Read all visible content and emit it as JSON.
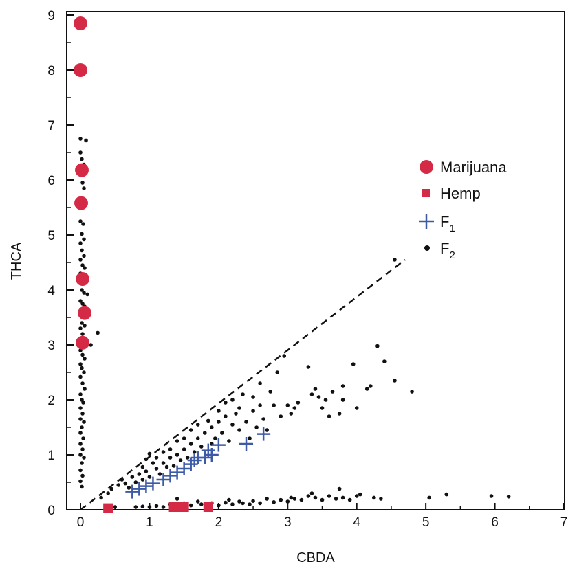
{
  "chart_data": {
    "type": "scatter",
    "xlabel": "CBDA",
    "ylabel": "THCA",
    "xlim": [
      0,
      7
    ],
    "ylim": [
      0,
      9
    ],
    "x_ticks": [
      "0",
      "1",
      "2",
      "3",
      "4",
      "5",
      "6",
      "7"
    ],
    "y_ticks": [
      "0",
      "1",
      "2",
      "3",
      "4",
      "5",
      "6",
      "7",
      "8",
      "9"
    ],
    "grid": false,
    "legend_position": "top-right",
    "legend": [
      {
        "label": "Marijuana",
        "sub": "",
        "marker": "circle"
      },
      {
        "label": "Hemp",
        "sub": "",
        "marker": "square"
      },
      {
        "label": "F",
        "sub": "1",
        "marker": "plus"
      },
      {
        "label": "F",
        "sub": "2",
        "marker": "dot"
      }
    ],
    "colors": {
      "marijuana": "#d42a45",
      "hemp": "#d42a45",
      "f1": "#3d5aa6",
      "f2": "#111111"
    },
    "reference_line": {
      "style": "dashed",
      "from": [
        0,
        0
      ],
      "to": [
        4.7,
        4.55
      ]
    },
    "series": [
      {
        "name": "Marijuana",
        "marker": "circle",
        "points": [
          [
            0.0,
            8.85
          ],
          [
            0.0,
            8.0
          ],
          [
            0.02,
            6.18
          ],
          [
            0.01,
            5.58
          ],
          [
            0.03,
            4.2
          ],
          [
            0.06,
            3.58
          ],
          [
            0.03,
            3.04
          ]
        ]
      },
      {
        "name": "Hemp",
        "marker": "square",
        "points": [
          [
            0.4,
            0.03
          ],
          [
            1.35,
            0.05
          ],
          [
            1.45,
            0.05
          ],
          [
            1.5,
            0.05
          ],
          [
            1.85,
            0.05
          ]
        ]
      },
      {
        "name": "F1",
        "marker": "plus",
        "points": [
          [
            0.75,
            0.33
          ],
          [
            0.85,
            0.38
          ],
          [
            0.95,
            0.43
          ],
          [
            1.05,
            0.48
          ],
          [
            1.2,
            0.55
          ],
          [
            1.3,
            0.62
          ],
          [
            1.4,
            0.68
          ],
          [
            1.5,
            0.75
          ],
          [
            1.6,
            0.83
          ],
          [
            1.65,
            0.9
          ],
          [
            1.7,
            0.95
          ],
          [
            1.8,
            0.95
          ],
          [
            1.9,
            1.0
          ],
          [
            1.85,
            1.08
          ],
          [
            2.0,
            1.18
          ],
          [
            2.4,
            1.2
          ],
          [
            2.65,
            1.38
          ]
        ]
      },
      {
        "name": "F2",
        "marker": "dot",
        "points": [
          [
            0.0,
            6.75
          ],
          [
            0.08,
            6.72
          ],
          [
            0.0,
            6.5
          ],
          [
            0.02,
            6.38
          ],
          [
            0.05,
            6.28
          ],
          [
            0.03,
            5.95
          ],
          [
            0.05,
            5.85
          ],
          [
            0.03,
            5.55
          ],
          [
            0.0,
            5.25
          ],
          [
            0.04,
            5.2
          ],
          [
            0.02,
            5.02
          ],
          [
            0.05,
            4.92
          ],
          [
            0.0,
            4.85
          ],
          [
            0.02,
            4.72
          ],
          [
            0.05,
            4.62
          ],
          [
            0.0,
            4.55
          ],
          [
            0.03,
            4.45
          ],
          [
            0.06,
            4.4
          ],
          [
            0.0,
            4.3
          ],
          [
            0.02,
            4.0
          ],
          [
            0.05,
            3.95
          ],
          [
            0.1,
            3.92
          ],
          [
            0.0,
            3.8
          ],
          [
            0.03,
            3.75
          ],
          [
            0.06,
            3.7
          ],
          [
            0.0,
            3.62
          ],
          [
            0.04,
            3.5
          ],
          [
            0.02,
            3.4
          ],
          [
            0.06,
            3.35
          ],
          [
            0.0,
            3.3
          ],
          [
            0.03,
            3.2
          ],
          [
            0.25,
            3.22
          ],
          [
            0.0,
            3.1
          ],
          [
            0.05,
            3.02
          ],
          [
            0.15,
            3.0
          ],
          [
            0.0,
            2.9
          ],
          [
            0.03,
            2.82
          ],
          [
            0.06,
            2.75
          ],
          [
            0.0,
            2.65
          ],
          [
            0.02,
            2.58
          ],
          [
            0.05,
            2.5
          ],
          [
            0.0,
            2.42
          ],
          [
            0.03,
            2.3
          ],
          [
            0.06,
            2.2
          ],
          [
            0.0,
            2.1
          ],
          [
            0.02,
            2.0
          ],
          [
            0.04,
            1.95
          ],
          [
            0.0,
            1.85
          ],
          [
            0.03,
            1.75
          ],
          [
            0.0,
            1.65
          ],
          [
            0.05,
            1.6
          ],
          [
            0.02,
            1.5
          ],
          [
            0.0,
            1.4
          ],
          [
            0.04,
            1.3
          ],
          [
            0.0,
            1.2
          ],
          [
            0.03,
            1.1
          ],
          [
            0.0,
            1.0
          ],
          [
            0.05,
            0.95
          ],
          [
            0.02,
            0.85
          ],
          [
            0.0,
            0.72
          ],
          [
            0.03,
            0.62
          ],
          [
            0.0,
            0.52
          ],
          [
            0.02,
            0.42
          ],
          [
            0.3,
            0.22
          ],
          [
            0.4,
            0.3
          ],
          [
            0.45,
            0.38
          ],
          [
            0.55,
            0.45
          ],
          [
            0.6,
            0.55
          ],
          [
            0.65,
            0.48
          ],
          [
            0.7,
            0.4
          ],
          [
            0.75,
            0.6
          ],
          [
            0.8,
            0.5
          ],
          [
            0.85,
            0.65
          ],
          [
            0.9,
            0.55
          ],
          [
            0.9,
            0.78
          ],
          [
            0.95,
            0.7
          ],
          [
            1.0,
            0.6
          ],
          [
            0.95,
            0.92
          ],
          [
            1.0,
            1.02
          ],
          [
            1.05,
            0.85
          ],
          [
            1.1,
            0.75
          ],
          [
            1.1,
            0.95
          ],
          [
            1.15,
            0.65
          ],
          [
            1.2,
            0.85
          ],
          [
            1.2,
            1.05
          ],
          [
            1.25,
            0.78
          ],
          [
            1.3,
            0.95
          ],
          [
            1.3,
            1.1
          ],
          [
            1.35,
            0.8
          ],
          [
            1.4,
            1.0
          ],
          [
            1.4,
            1.25
          ],
          [
            1.45,
            0.9
          ],
          [
            1.5,
            1.1
          ],
          [
            1.5,
            1.3
          ],
          [
            1.55,
            0.95
          ],
          [
            1.6,
            1.2
          ],
          [
            1.6,
            1.45
          ],
          [
            1.65,
            1.05
          ],
          [
            1.7,
            1.3
          ],
          [
            1.7,
            1.55
          ],
          [
            1.75,
            1.15
          ],
          [
            1.8,
            1.4
          ],
          [
            1.85,
            1.62
          ],
          [
            1.9,
            1.2
          ],
          [
            1.9,
            1.5
          ],
          [
            1.95,
            1.3
          ],
          [
            2.0,
            1.6
          ],
          [
            2.0,
            1.8
          ],
          [
            2.05,
            1.4
          ],
          [
            2.1,
            1.7
          ],
          [
            2.1,
            1.95
          ],
          [
            2.15,
            1.25
          ],
          [
            2.2,
            1.55
          ],
          [
            2.2,
            2.0
          ],
          [
            2.25,
            1.75
          ],
          [
            2.3,
            1.45
          ],
          [
            2.3,
            1.85
          ],
          [
            2.35,
            2.1
          ],
          [
            2.4,
            1.6
          ],
          [
            2.45,
            1.3
          ],
          [
            2.5,
            1.8
          ],
          [
            2.5,
            2.05
          ],
          [
            2.55,
            1.5
          ],
          [
            2.6,
            1.9
          ],
          [
            2.6,
            2.3
          ],
          [
            2.65,
            1.65
          ],
          [
            2.7,
            1.45
          ],
          [
            2.75,
            2.15
          ],
          [
            2.8,
            1.9
          ],
          [
            2.85,
            2.5
          ],
          [
            2.9,
            1.7
          ],
          [
            2.95,
            2.8
          ],
          [
            3.0,
            1.9
          ],
          [
            3.05,
            1.75
          ],
          [
            3.1,
            1.85
          ],
          [
            3.15,
            1.95
          ],
          [
            3.3,
            2.6
          ],
          [
            3.35,
            2.1
          ],
          [
            3.4,
            2.2
          ],
          [
            3.45,
            2.05
          ],
          [
            3.5,
            1.85
          ],
          [
            3.55,
            2.0
          ],
          [
            3.6,
            1.7
          ],
          [
            3.65,
            2.15
          ],
          [
            3.75,
            1.75
          ],
          [
            3.8,
            2.25
          ],
          [
            3.8,
            2.0
          ],
          [
            3.95,
            2.65
          ],
          [
            4.0,
            1.85
          ],
          [
            4.15,
            2.2
          ],
          [
            4.2,
            2.25
          ],
          [
            4.3,
            2.98
          ],
          [
            4.4,
            2.7
          ],
          [
            4.55,
            2.35
          ],
          [
            4.8,
            2.15
          ],
          [
            0.5,
            0.05
          ],
          [
            0.8,
            0.05
          ],
          [
            0.9,
            0.06
          ],
          [
            1.0,
            0.05
          ],
          [
            1.1,
            0.07
          ],
          [
            1.2,
            0.05
          ],
          [
            1.3,
            0.1
          ],
          [
            1.4,
            0.2
          ],
          [
            1.5,
            0.12
          ],
          [
            1.6,
            0.08
          ],
          [
            1.7,
            0.15
          ],
          [
            1.75,
            0.1
          ],
          [
            1.9,
            0.12
          ],
          [
            2.0,
            0.08
          ],
          [
            2.1,
            0.13
          ],
          [
            2.15,
            0.18
          ],
          [
            2.2,
            0.1
          ],
          [
            2.3,
            0.15
          ],
          [
            2.35,
            0.12
          ],
          [
            2.45,
            0.1
          ],
          [
            2.5,
            0.16
          ],
          [
            2.6,
            0.12
          ],
          [
            2.7,
            0.2
          ],
          [
            2.8,
            0.14
          ],
          [
            2.9,
            0.18
          ],
          [
            3.0,
            0.15
          ],
          [
            3.05,
            0.22
          ],
          [
            3.1,
            0.2
          ],
          [
            3.2,
            0.18
          ],
          [
            3.3,
            0.25
          ],
          [
            3.35,
            0.3
          ],
          [
            3.4,
            0.22
          ],
          [
            3.5,
            0.18
          ],
          [
            3.6,
            0.25
          ],
          [
            3.7,
            0.2
          ],
          [
            3.75,
            0.38
          ],
          [
            3.8,
            0.22
          ],
          [
            3.9,
            0.18
          ],
          [
            4.0,
            0.25
          ],
          [
            4.05,
            0.28
          ],
          [
            4.25,
            0.22
          ],
          [
            4.35,
            0.2
          ],
          [
            5.05,
            0.22
          ],
          [
            5.3,
            0.28
          ],
          [
            5.95,
            0.25
          ],
          [
            6.2,
            0.24
          ],
          [
            4.55,
            4.55
          ]
        ]
      }
    ]
  }
}
